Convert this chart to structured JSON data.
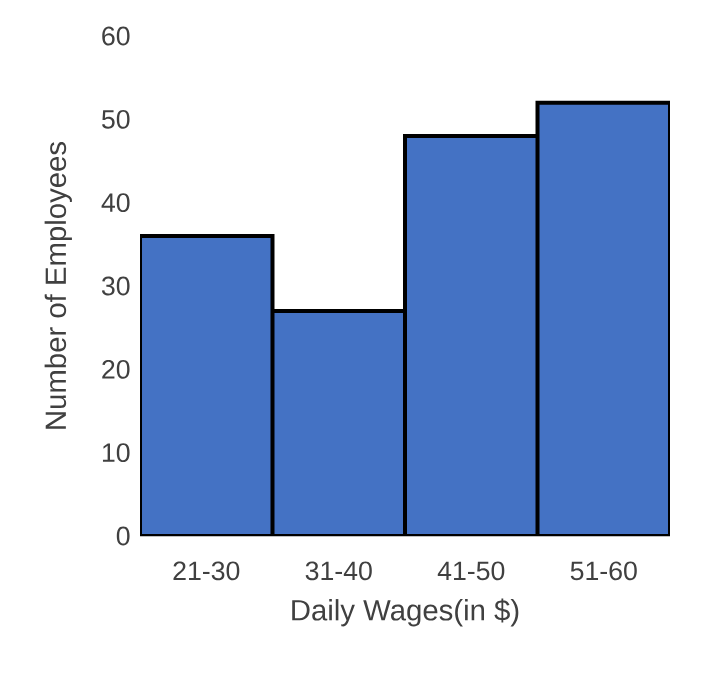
{
  "chart_data": {
    "type": "bar",
    "xlabel": "Daily Wages(in $)",
    "ylabel": "Number of Employees",
    "categories": [
      "21-30",
      "31-40",
      "41-50",
      "51-60"
    ],
    "values": [
      36,
      27,
      48,
      52
    ],
    "color": "#4472c4",
    "ylim": [
      0,
      60
    ],
    "yticks": [
      0,
      10,
      20,
      30,
      40,
      50,
      60
    ]
  }
}
